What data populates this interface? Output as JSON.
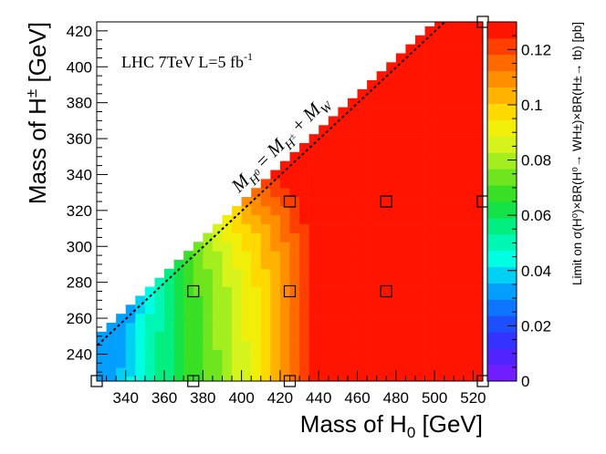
{
  "chart_data": {
    "type": "heatmap",
    "title": "",
    "xlabel_base": "Mass of H",
    "xlabel_sub": "0",
    "xlabel_unit": " [GeV]",
    "ylabel_base": "Mass of H",
    "ylabel_sup": "±",
    "ylabel_unit": " [GeV]",
    "xlim": [
      325,
      525
    ],
    "ylim": [
      225,
      425
    ],
    "bin": 5,
    "xticks": [
      340,
      360,
      380,
      400,
      420,
      440,
      460,
      480,
      500,
      520
    ],
    "yticks": [
      240,
      260,
      280,
      300,
      320,
      340,
      360,
      380,
      400,
      420
    ],
    "zlim": [
      0,
      0.13
    ],
    "zticks": [
      0,
      0.02,
      0.04,
      0.06,
      0.08,
      0.1,
      0.12
    ],
    "colorbar_label": "Limit on σ(H⁰)×BR(H⁰→ WH±)×BR(H±→ tb) [pb]",
    "annotation": {
      "label_base": "LHC 7TeV L=5 fb",
      "label_sup": "-1"
    },
    "kinematic_line": {
      "label": "M_H0 = M_H± + M_W",
      "offset_gev": 80.4
    },
    "markers": [
      {
        "x": 325,
        "y": 225
      },
      {
        "x": 375,
        "y": 225
      },
      {
        "x": 425,
        "y": 225
      },
      {
        "x": 525,
        "y": 225
      },
      {
        "x": 375,
        "y": 275
      },
      {
        "x": 425,
        "y": 275
      },
      {
        "x": 475,
        "y": 275
      },
      {
        "x": 425,
        "y": 325
      },
      {
        "x": 475,
        "y": 325
      },
      {
        "x": 525,
        "y": 325
      },
      {
        "x": 525,
        "y": 425
      }
    ],
    "limit_model": {
      "description": "approximate limit per bin: rises with M_H0 to a ridge near M_H0 ~ 480 GeV, falls slightly at higher masses; higher near the kinematic edge",
      "ridge_x": 480,
      "ridge_width": 45,
      "base": 0.03,
      "slope_per_gev": 0.0007,
      "edge_boost": 0.03,
      "edge_scale_gev": 25,
      "cap": 0.13
    }
  },
  "tick_format": {
    "z": [
      "0",
      "0.02",
      "0.04",
      "0.06",
      "0.08",
      "0.1",
      "0.12"
    ]
  }
}
